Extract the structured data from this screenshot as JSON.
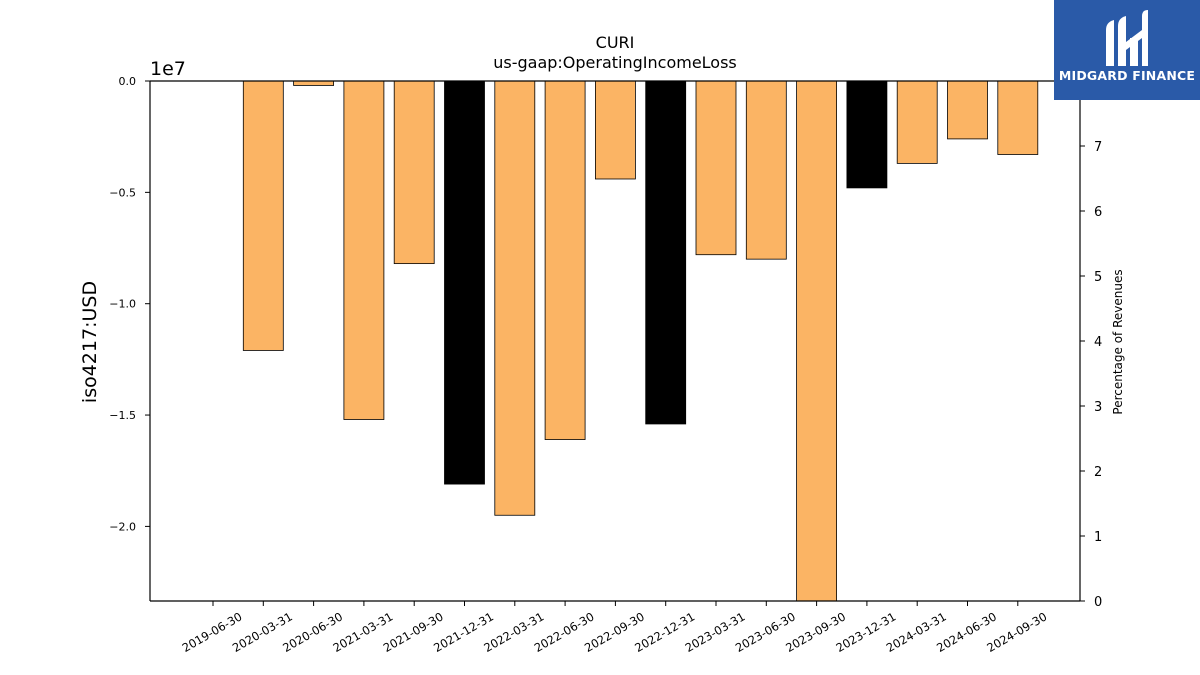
{
  "chart_data": {
    "type": "bar",
    "title": "CURI",
    "subtitle": "us-gaap:OperatingIncomeLoss",
    "ylabel": "iso4217:USD",
    "y_offset_label": "1e7",
    "y2label": "Percentage of Revenues",
    "ylim": [
      -23350000.0,
      0
    ],
    "y2lim": [
      0,
      8
    ],
    "yticks": [
      {
        "value": 0,
        "label": "0.0"
      },
      {
        "value": -5000000,
        "label": "−0.5"
      },
      {
        "value": -10000000,
        "label": "−1.0"
      },
      {
        "value": -15000000,
        "label": "−1.5"
      },
      {
        "value": -20000000,
        "label": "−2.0"
      }
    ],
    "y2ticks": [
      0,
      1,
      2,
      3,
      4,
      5,
      6,
      7
    ],
    "categories": [
      "2019-06-30",
      "2020-03-31",
      "2020-06-30",
      "2021-03-31",
      "2021-09-30",
      "2021-12-31",
      "2022-03-31",
      "2022-06-30",
      "2022-09-30",
      "2022-12-31",
      "2023-03-31",
      "2023-06-30",
      "2023-09-30",
      "2023-12-31",
      "2024-03-31",
      "2024-06-30",
      "2024-09-30"
    ],
    "values": [
      0,
      -12100000,
      -200000,
      -15200000,
      -8200000,
      -18100000,
      -19500000,
      -16100000,
      -4400000,
      -15400000,
      -7800000,
      -8000000,
      -23350000,
      -4800000,
      -3700000,
      -2600000,
      -3300000
    ],
    "bar_colors": [
      "#fbb464",
      "#fbb464",
      "#fbb464",
      "#fbb464",
      "#fbb464",
      "#000000",
      "#fbb464",
      "#fbb464",
      "#fbb464",
      "#000000",
      "#fbb464",
      "#fbb464",
      "#fbb464",
      "#000000",
      "#fbb464",
      "#fbb464",
      "#fbb464"
    ],
    "grid": false,
    "legend": "none"
  },
  "logo": {
    "text": "MIDGARD FINANCE",
    "background": "#2a5aa8",
    "icon": "midgard-finance-logo-icon"
  }
}
